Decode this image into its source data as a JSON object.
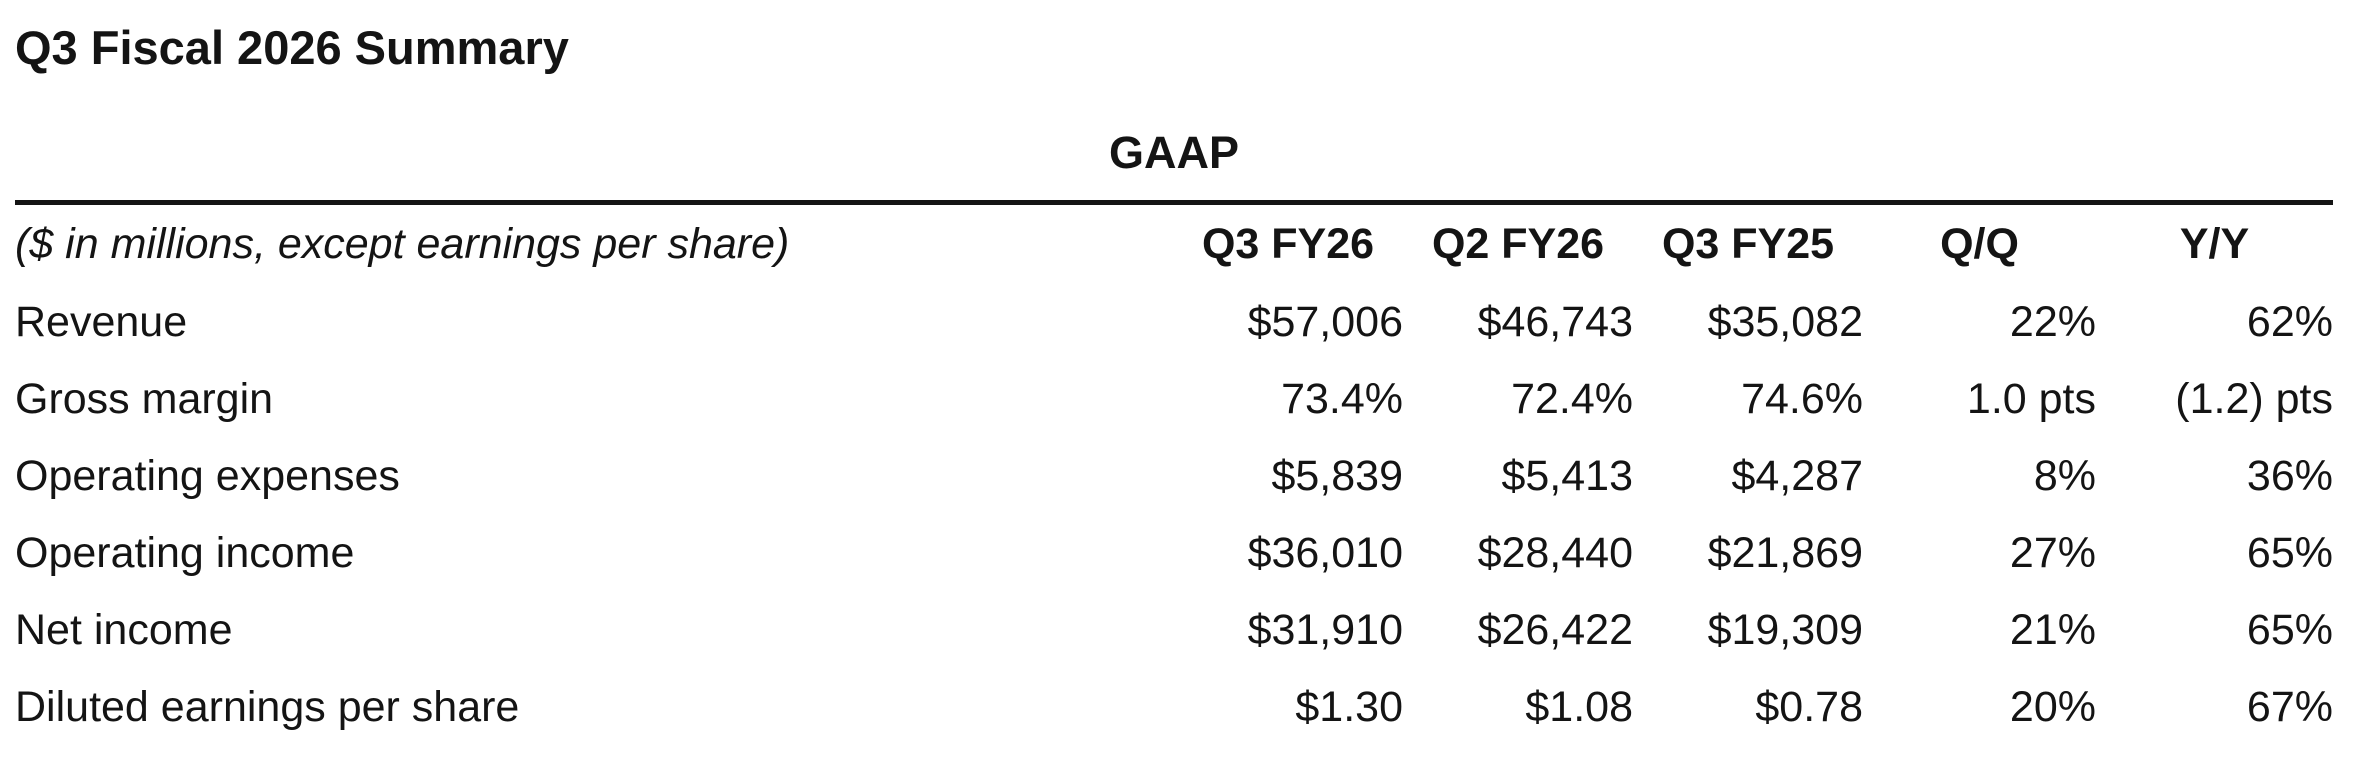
{
  "page": {
    "title": "Q3 Fiscal 2026 Summary"
  },
  "table": {
    "group_header": "GAAP",
    "unit_note": "($ in millions, except earnings per share)",
    "columns": [
      "Q3 FY26",
      "Q2 FY26",
      "Q3 FY25",
      "Q/Q",
      "Y/Y"
    ],
    "rows": [
      {
        "label": "Revenue",
        "values": [
          "$57,006",
          "$46,743",
          "$35,082",
          "22%",
          "62%"
        ]
      },
      {
        "label": "Gross margin",
        "values": [
          "73.4%",
          "72.4%",
          "74.6%",
          "1.0 pts",
          "(1.2) pts"
        ]
      },
      {
        "label": "Operating expenses",
        "values": [
          "$5,839",
          "$5,413",
          "$4,287",
          "8%",
          "36%"
        ]
      },
      {
        "label": "Operating income",
        "values": [
          "$36,010",
          "$28,440",
          "$21,869",
          "27%",
          "65%"
        ]
      },
      {
        "label": "Net income",
        "values": [
          "$31,910",
          "$26,422",
          "$19,309",
          "21%",
          "65%"
        ]
      },
      {
        "label": "Diluted earnings per share",
        "values": [
          "$1.30",
          "$1.08",
          "$0.78",
          "20%",
          "67%"
        ]
      }
    ]
  },
  "colors": {
    "text": "#141414",
    "rule": "#141414",
    "background": "#ffffff"
  }
}
